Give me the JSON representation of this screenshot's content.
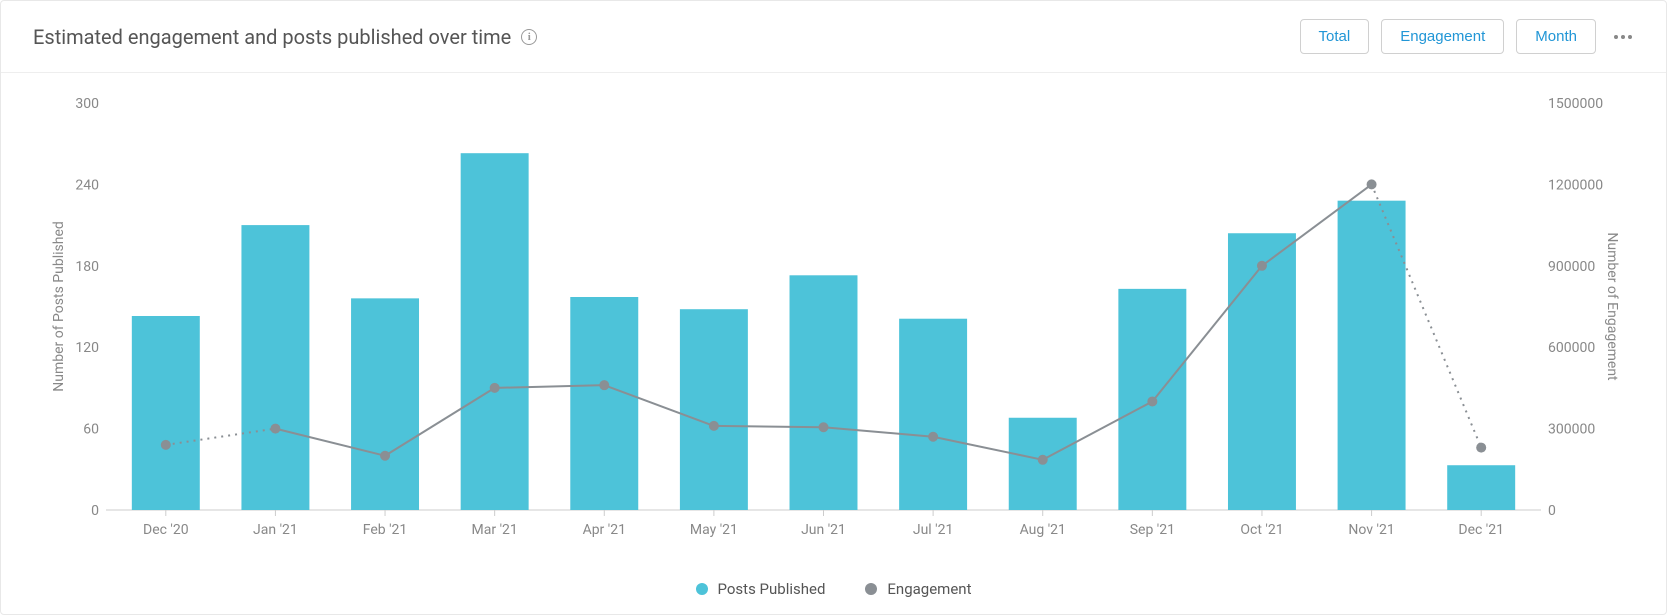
{
  "header": {
    "title": "Estimated engagement and posts published over time",
    "buttons": {
      "total": "Total",
      "engagement": "Engagement",
      "month": "Month"
    }
  },
  "chart": {
    "type": "bar+line",
    "categories": [
      "Dec '20",
      "Jan '21",
      "Feb '21",
      "Mar '21",
      "Apr '21",
      "May '21",
      "Jun '21",
      "Jul '21",
      "Aug '21",
      "Sep '21",
      "Oct '21",
      "Nov '21",
      "Dec '21"
    ],
    "bars": {
      "label": "Posts Published",
      "values": [
        143,
        210,
        156,
        263,
        157,
        148,
        173,
        141,
        68,
        163,
        204,
        228,
        33
      ],
      "color": "#4dc3d9"
    },
    "line": {
      "label": "Engagement",
      "values": [
        240000,
        300000,
        200000,
        450000,
        460000,
        310000,
        305000,
        270000,
        185000,
        400000,
        900000,
        1200000,
        230000
      ],
      "color": "#8a8f94",
      "marker_color": "#8a8f94",
      "marker_radius": 5,
      "dotted_segments": [
        [
          0,
          1
        ],
        [
          11,
          12
        ]
      ]
    },
    "y_left": {
      "label": "Number of Posts Published",
      "min": 0,
      "max": 300,
      "ticks": [
        0,
        60,
        120,
        180,
        240,
        300
      ]
    },
    "y_right": {
      "label": "Number of Engagement",
      "min": 0,
      "max": 1500000,
      "ticks": [
        0,
        300000,
        600000,
        900000,
        1200000,
        1500000
      ]
    },
    "plot": {
      "background": "#ffffff",
      "grid": "none",
      "bar_width_ratio": 0.62,
      "axis_color": "#888",
      "text_color": "#888"
    },
    "legend": {
      "posts": "Posts Published",
      "engagement": "Engagement"
    }
  }
}
